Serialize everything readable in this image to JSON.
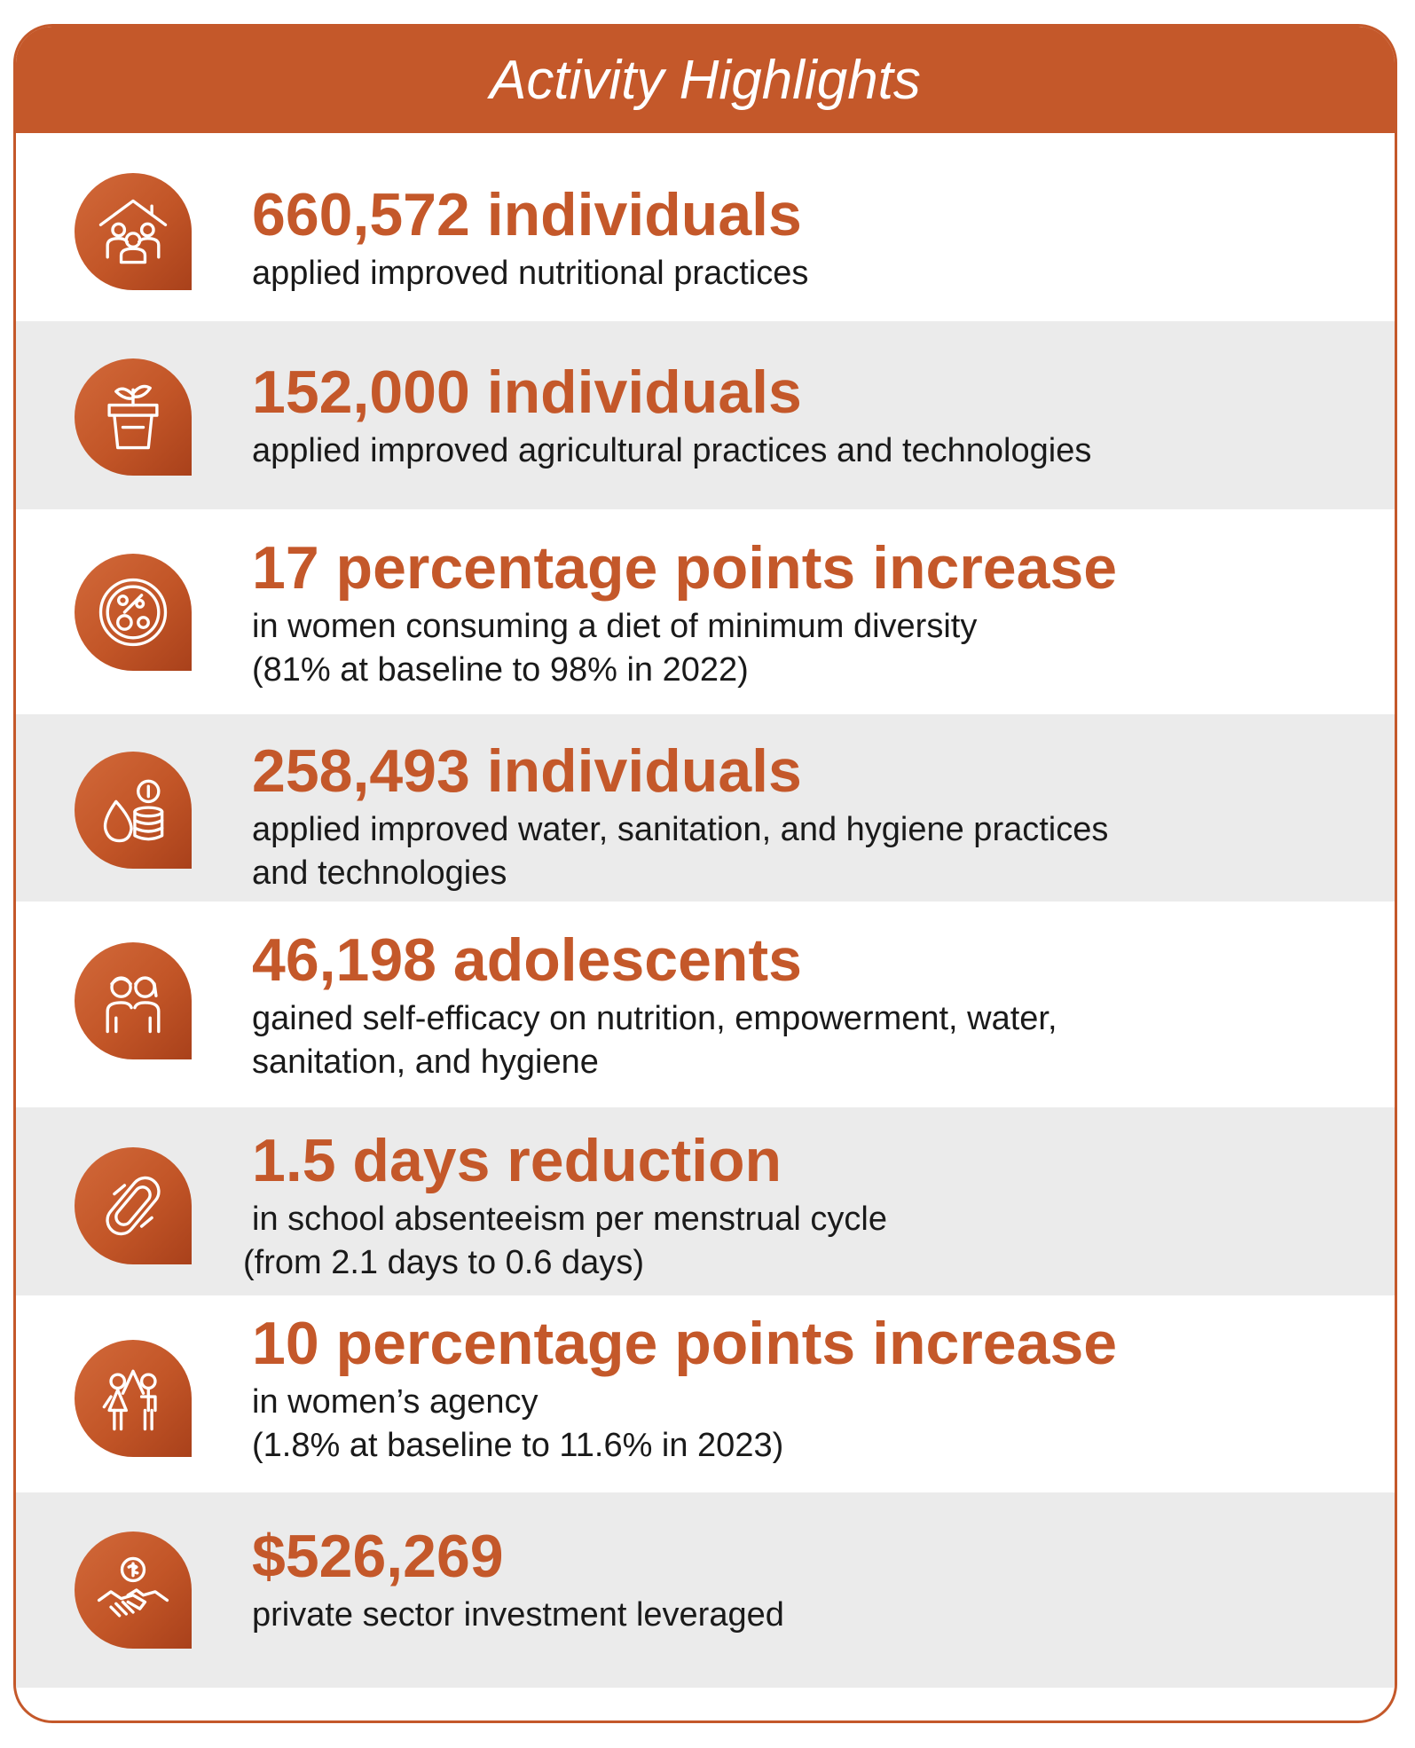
{
  "header": {
    "title": "Activity Highlights"
  },
  "highlights": [
    {
      "stat": "660,572 individuals",
      "lines": [
        "applied improved nutritional practices"
      ],
      "icon": "household-family-icon"
    },
    {
      "stat": "152,000 individuals",
      "lines": [
        "applied improved agricultural practices and technologies"
      ],
      "icon": "potted-seedling-icon"
    },
    {
      "stat": "17 percentage points increase",
      "lines": [
        "in women consuming a diet of minimum diversity",
        "(81% at baseline to 98% in 2022)"
      ],
      "icon": "diverse-food-plate-icon"
    },
    {
      "stat": "258,493 individuals",
      "lines": [
        "applied improved water, sanitation, and hygiene practices",
        "and technologies"
      ],
      "icon": "water-drop-coins-icon"
    },
    {
      "stat": "46,198 adolescents",
      "lines": [
        "gained self-efficacy on nutrition, empowerment, water,",
        "sanitation, and hygiene"
      ],
      "icon": "adolescents-icon"
    },
    {
      "stat": "1.5 days reduction",
      "lines": [
        "in school absenteeism per menstrual cycle",
        "(from 2.1 days to 0.6 days)"
      ],
      "icon": "sanitary-pad-icon"
    },
    {
      "stat": "10 percentage points increase",
      "lines": [
        "in women’s agency",
        "(1.8% at baseline to 11.6% in 2023)"
      ],
      "icon": "man-woman-high-five-icon"
    },
    {
      "stat": "$526,269",
      "lines": [
        "private sector investment leveraged"
      ],
      "icon": "handshake-dollar-icon"
    }
  ],
  "colors": {
    "accent": "#c4582a",
    "row_alt": "#ebebeb",
    "text": "#1a1a1a"
  }
}
